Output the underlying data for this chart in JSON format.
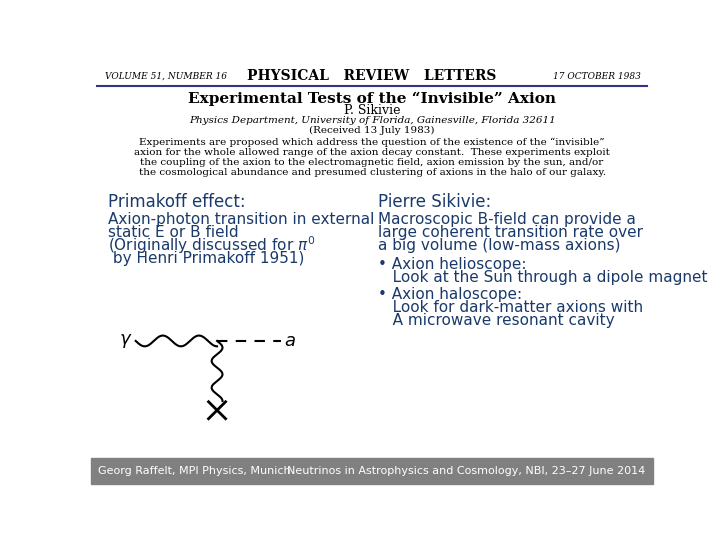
{
  "bg_color": "#ffffff",
  "footer_bg": "#808080",
  "blue_color": "#1a3a6b",
  "journal_left": "VOLUME 51, NUMBER 16",
  "journal_center": "PHYSICAL   REVIEW   LETTERS",
  "journal_right": "17 OCTOBER 1983",
  "paper_title": "Experimental Tests of the “Invisible” Axion",
  "paper_author": "P. Sikivie",
  "paper_affil": "Physics Department, University of Florida, Gainesville, Florida 32611",
  "paper_received": "(Received 13 July 1983)",
  "abstract_lines": [
    "Experiments are proposed which address the question of the existence of the “invisible”",
    "axion for the whole allowed range of the axion decay constant.  These experiments exploit",
    "the coupling of the axion to the electromagnetic field, axion emission by the sun, and/or",
    "the cosmological abundance and presumed clustering of axions in the halo of our galaxy."
  ],
  "left_heading": "Primakoff effect:",
  "left_text1": "Axion-photon transition in external",
  "left_text2": "static E or B field",
  "left_text3_pre": "(Originally discussed for ",
  "left_text4": " by Henri Primakoff 1951)",
  "right_heading": "Pierre Sikivie:",
  "right_text1": "Macroscopic B-field can provide a",
  "right_text2": "large coherent transition rate over",
  "right_text3": "a big volume (low-mass axions)",
  "right_bullet1_head": "• Axion helioscope:",
  "right_bullet1_body": "   Look at the Sun through a dipole magnet",
  "right_bullet2_head": "• Axion haloscope:",
  "right_bullet2_body1": "   Look for dark-matter axions with",
  "right_bullet2_body2": "   A microwave resonant cavity",
  "footer_left": "Georg Raffelt, MPI Physics, Munich",
  "footer_right": "Neutrinos in Astrophysics and Cosmology, NBI, 23–27 June 2014"
}
